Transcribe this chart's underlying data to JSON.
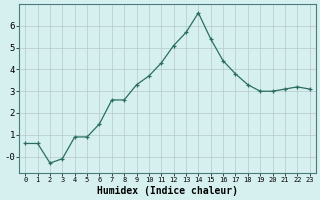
{
  "x": [
    0,
    1,
    2,
    3,
    4,
    5,
    6,
    7,
    8,
    9,
    10,
    11,
    12,
    13,
    14,
    15,
    16,
    17,
    18,
    19,
    20,
    21,
    22,
    23
  ],
  "y": [
    0.6,
    0.6,
    -0.3,
    -0.1,
    0.9,
    0.9,
    1.5,
    2.6,
    2.6,
    3.3,
    3.7,
    4.3,
    5.1,
    5.7,
    6.6,
    5.4,
    4.4,
    3.8,
    3.3,
    3.0,
    3.0,
    3.1,
    3.2,
    3.1
  ],
  "line_color": "#2a6e63",
  "marker": "+",
  "bg_color": "#d6f0f0",
  "grid_color_major": "#b8c8c8",
  "grid_color_minor": "#c8dada",
  "axis_label": "Humidex (Indice chaleur)",
  "xlabel_fontsize": 7,
  "xtick_fontsize": 5,
  "ytick_fontsize": 6.5,
  "ylabel_ticks": [
    0,
    1,
    2,
    3,
    4,
    5,
    6
  ],
  "ytick_labels": [
    "-0",
    "1",
    "2",
    "3",
    "4",
    "5",
    "6"
  ],
  "xlim": [
    -0.5,
    23.5
  ],
  "ylim": [
    -0.75,
    7.0
  ]
}
